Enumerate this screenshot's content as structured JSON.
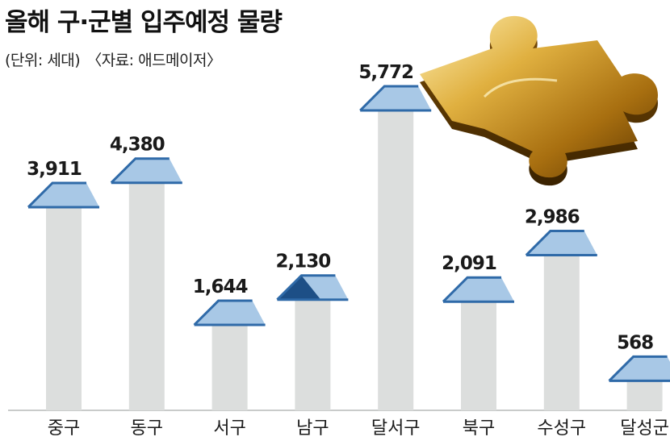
{
  "header": {
    "title": "올해 구·군별 입주예정 물량",
    "unit": "(단위: 세대)",
    "source": "〈자료: 애드메이저〉"
  },
  "colors": {
    "pillar": "#dcdedd",
    "roof": "#a8c8e6",
    "roof_edge": "#2f6aa8",
    "roof_dark": "#1d4f86",
    "baseline": "#c9cbca"
  },
  "decoration": {
    "puzzle_piece": "gold-puzzle-piece-image"
  },
  "chart_data": {
    "type": "bar",
    "categories": [
      "중구",
      "동구",
      "서구",
      "남구",
      "달서구",
      "북구",
      "수성구",
      "달성군"
    ],
    "value_labels": [
      "3,911",
      "4,380",
      "1,644",
      "2,130",
      "5,772",
      "2,091",
      "2,986",
      "568"
    ],
    "values": [
      3911,
      4380,
      1644,
      2130,
      5772,
      2091,
      2986,
      568
    ],
    "title": "올해 구·군별 입주예정 물량",
    "ylabel": "",
    "xlabel": "",
    "ylim": [
      0,
      5772
    ],
    "grid": false,
    "highlight_index": 3
  }
}
